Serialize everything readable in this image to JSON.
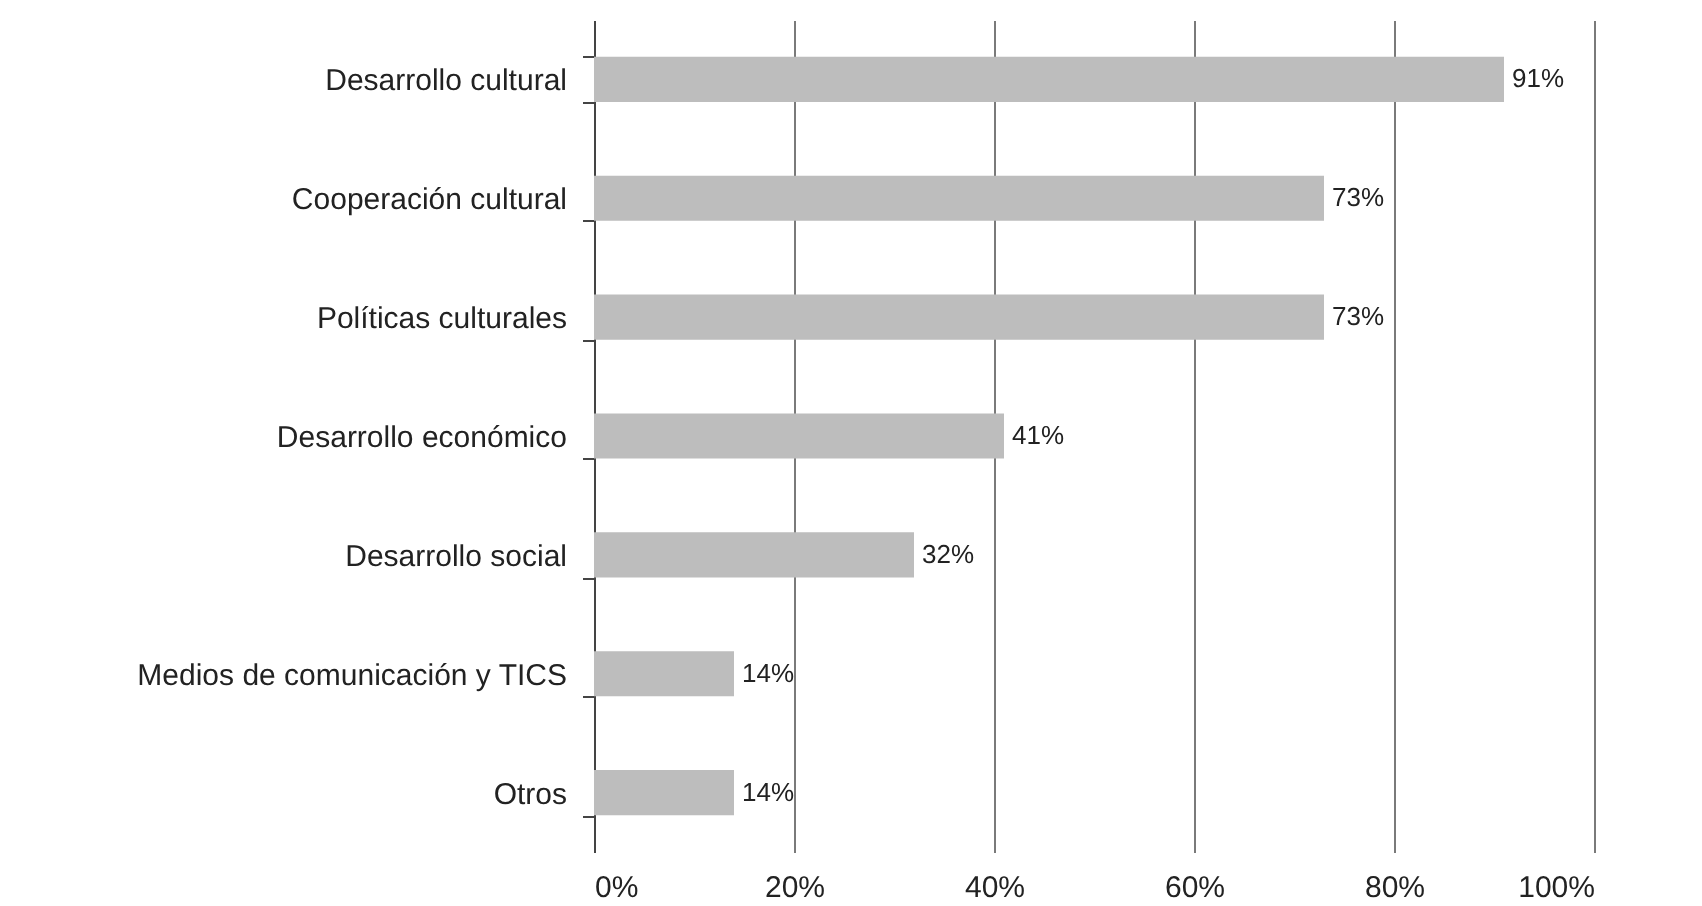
{
  "chart_data": {
    "type": "bar",
    "orientation": "horizontal",
    "categories": [
      "Desarrollo cultural",
      "Cooperación cultural",
      "Políticas culturales",
      "Desarrollo económico",
      "Desarrollo social",
      "Medios de comunicación y TICS",
      "Otros"
    ],
    "values": [
      91,
      73,
      73,
      41,
      32,
      14,
      14
    ],
    "value_labels": [
      "91%",
      "73%",
      "73%",
      "41%",
      "32%",
      "14%",
      "14%"
    ],
    "color": "#bdbdbd",
    "xlim": [
      0,
      100
    ],
    "xticks": [
      {
        "value": 0,
        "label": "0%"
      },
      {
        "value": 20,
        "label": "20%"
      },
      {
        "value": 40,
        "label": "40%"
      },
      {
        "value": 60,
        "label": "60%"
      },
      {
        "value": 80,
        "label": "80%"
      },
      {
        "value": 100,
        "label": "100%"
      }
    ],
    "grid": "x"
  }
}
